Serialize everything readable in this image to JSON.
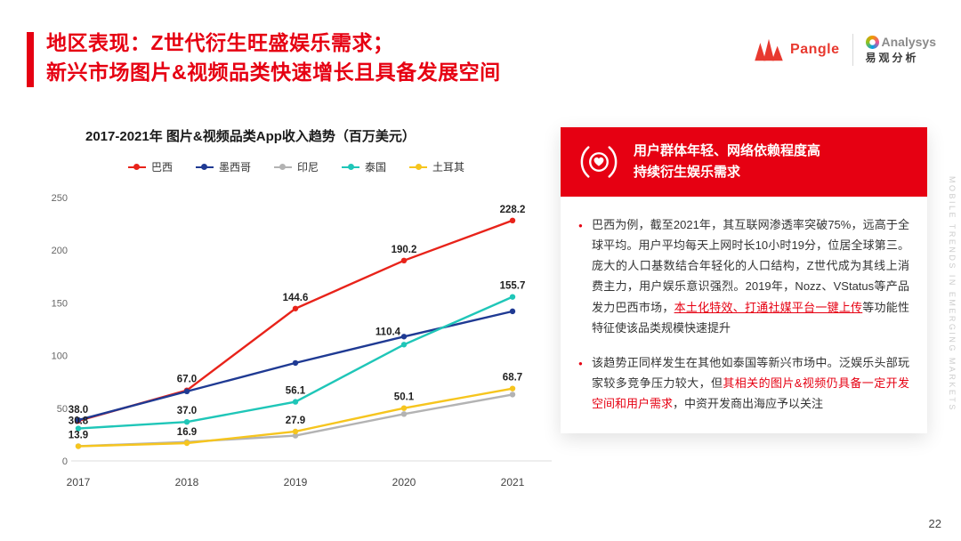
{
  "slide": {
    "title_line1": "地区表现：Z世代衍生旺盛娱乐需求；",
    "title_line2": "新兴市场图片&视频品类快速增长且具备发展空间",
    "page_number": "22",
    "watermark": "MOBILE TRENDS IN EMERGING MARKETS"
  },
  "logos": {
    "pangle": "Pangle",
    "analysys_en": "Analysys",
    "analysys_cn": "易观分析"
  },
  "chart_data": {
    "type": "line",
    "title": "2017-2021年 图片&视频品类App收入趋势（百万美元）",
    "categories": [
      "2017",
      "2018",
      "2019",
      "2020",
      "2021"
    ],
    "ylim": [
      0,
      250
    ],
    "ytick": 50,
    "grid": false,
    "legend_position": "top",
    "series": [
      {
        "name": "巴西",
        "color": "#e8231a",
        "values": [
          38.0,
          67.0,
          144.6,
          190.2,
          228.2
        ],
        "labels": [
          "38.0",
          "67.0",
          "144.6",
          "190.2",
          "228.2"
        ]
      },
      {
        "name": "墨西哥",
        "color": "#1f3a93",
        "values": [
          38.8,
          66.0,
          93.0,
          118.0,
          142.0
        ],
        "labels": [
          null,
          null,
          null,
          null,
          null
        ]
      },
      {
        "name": "印尼",
        "color": "#b3b3b3",
        "values": [
          14.0,
          18.0,
          24.0,
          44.5,
          63.0
        ],
        "labels": [
          null,
          null,
          null,
          null,
          null
        ]
      },
      {
        "name": "泰国",
        "color": "#1fc6b8",
        "values": [
          30.8,
          37.0,
          56.1,
          110.4,
          155.7
        ],
        "labels": [
          "30.8",
          "37.0",
          "56.1",
          "110.4",
          "155.7"
        ],
        "label_dx": [
          0,
          0,
          0,
          -18,
          0
        ],
        "label_dy": [
          4,
          0,
          0,
          -2,
          0
        ]
      },
      {
        "name": "土耳其",
        "color": "#f6c51e",
        "values": [
          13.9,
          16.9,
          27.9,
          50.1,
          68.7
        ],
        "labels": [
          "13.9",
          "16.9",
          "27.9",
          "50.1",
          "68.7"
        ]
      }
    ]
  },
  "panel": {
    "header": {
      "icon": "hands-heart-icon",
      "line1": "用户群体年轻、网络依赖程度高",
      "line2": "持续衍生娱乐需求"
    },
    "bullets": [
      {
        "segments": [
          {
            "text": "巴西为例，截至2021年，其互联网渗透率突破75%，远高于全球平均。用户平均每天上网时长10小时19分，位居全球第三。庞大的人口基数结合年轻化的人口结构，Z世代成为其线上消费主力，用户娱乐意识强烈。2019年，Nozz、VStatus等产品发力巴西市场，"
          },
          {
            "text": "本土化特效、打通社媒平台一键上传",
            "style": "red-underline"
          },
          {
            "text": "等功能性特征使该品类规模快速提升"
          }
        ]
      },
      {
        "segments": [
          {
            "text": "该趋势正同样发生在其他如泰国等新兴市场中。泛娱乐头部玩家较多竞争压力较大，但"
          },
          {
            "text": "其相关的图片&视频仍具备一定开发空间和用户需求",
            "style": "red"
          },
          {
            "text": "，中资开发商出海应予以关注"
          }
        ]
      }
    ]
  }
}
